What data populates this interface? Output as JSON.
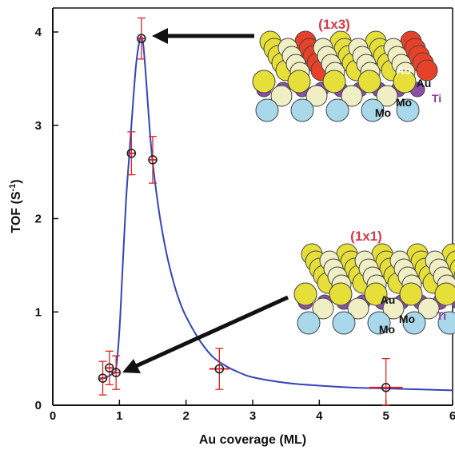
{
  "chart_data": {
    "type": "scatter",
    "xlabel": "Au coverage (ML)",
    "ylabel_main": "TOF (S",
    "ylabel_sup": "-1",
    "ylabel_tail": ")",
    "xlim": [
      0,
      6
    ],
    "ylim": [
      0,
      4.2
    ],
    "x_ticks": [
      "0",
      "1",
      "2",
      "3",
      "4",
      "5",
      "6"
    ],
    "y_ticks": [
      "0",
      "1",
      "2",
      "3",
      "4"
    ],
    "grid": false,
    "points": [
      {
        "x": 0.75,
        "y": 0.29,
        "yerr": 0.18,
        "xerr": 0.05
      },
      {
        "x": 0.85,
        "y": 0.4,
        "yerr": 0.18,
        "xerr": 0.05
      },
      {
        "x": 0.95,
        "y": 0.35,
        "yerr": 0.18,
        "xerr": 0.05
      },
      {
        "x": 1.18,
        "y": 2.7,
        "yerr": 0.23,
        "xerr": 0.05
      },
      {
        "x": 1.33,
        "y": 3.93,
        "yerr": 0.22,
        "xerr": 0.05
      },
      {
        "x": 1.5,
        "y": 2.63,
        "yerr": 0.25,
        "xerr": 0.05
      },
      {
        "x": 2.5,
        "y": 0.39,
        "yerr": 0.22,
        "xerr": 0.15
      },
      {
        "x": 5.0,
        "y": 0.19,
        "yerr": 0.31,
        "xerr": 0.25
      }
    ],
    "fit_curve": [
      [
        0.7,
        0.28
      ],
      [
        0.8,
        0.3
      ],
      [
        0.9,
        0.34
      ],
      [
        0.95,
        0.4
      ],
      [
        1.0,
        0.8
      ],
      [
        1.05,
        1.5
      ],
      [
        1.1,
        2.2
      ],
      [
        1.15,
        2.7
      ],
      [
        1.2,
        3.2
      ],
      [
        1.25,
        3.65
      ],
      [
        1.3,
        3.9
      ],
      [
        1.33,
        3.95
      ],
      [
        1.36,
        3.85
      ],
      [
        1.4,
        3.5
      ],
      [
        1.45,
        3.0
      ],
      [
        1.5,
        2.6
      ],
      [
        1.6,
        2.05
      ],
      [
        1.7,
        1.65
      ],
      [
        1.8,
        1.35
      ],
      [
        1.9,
        1.12
      ],
      [
        2.0,
        0.95
      ],
      [
        2.2,
        0.7
      ],
      [
        2.4,
        0.52
      ],
      [
        2.6,
        0.42
      ],
      [
        2.8,
        0.35
      ],
      [
        3.0,
        0.3
      ],
      [
        3.5,
        0.24
      ],
      [
        4.0,
        0.21
      ],
      [
        4.5,
        0.19
      ],
      [
        5.0,
        0.18
      ],
      [
        5.5,
        0.17
      ],
      [
        6.0,
        0.16
      ]
    ],
    "colors": {
      "curve": "#3344bb",
      "errorbar": "#dd2222",
      "marker": "#222222",
      "arrow": "#111111"
    },
    "annotations": {
      "top_structure": {
        "title": "(1x3)",
        "label_au_red": "Au",
        "label_au": "Au",
        "label_mo1": "Mo",
        "label_mo2": "Mo",
        "label_ti": "Ti"
      },
      "bottom_structure": {
        "title": "(1x1)",
        "label_au": "Au",
        "label_mo1": "Mo",
        "label_mo2": "Mo",
        "label_ti": "Ti"
      }
    }
  }
}
